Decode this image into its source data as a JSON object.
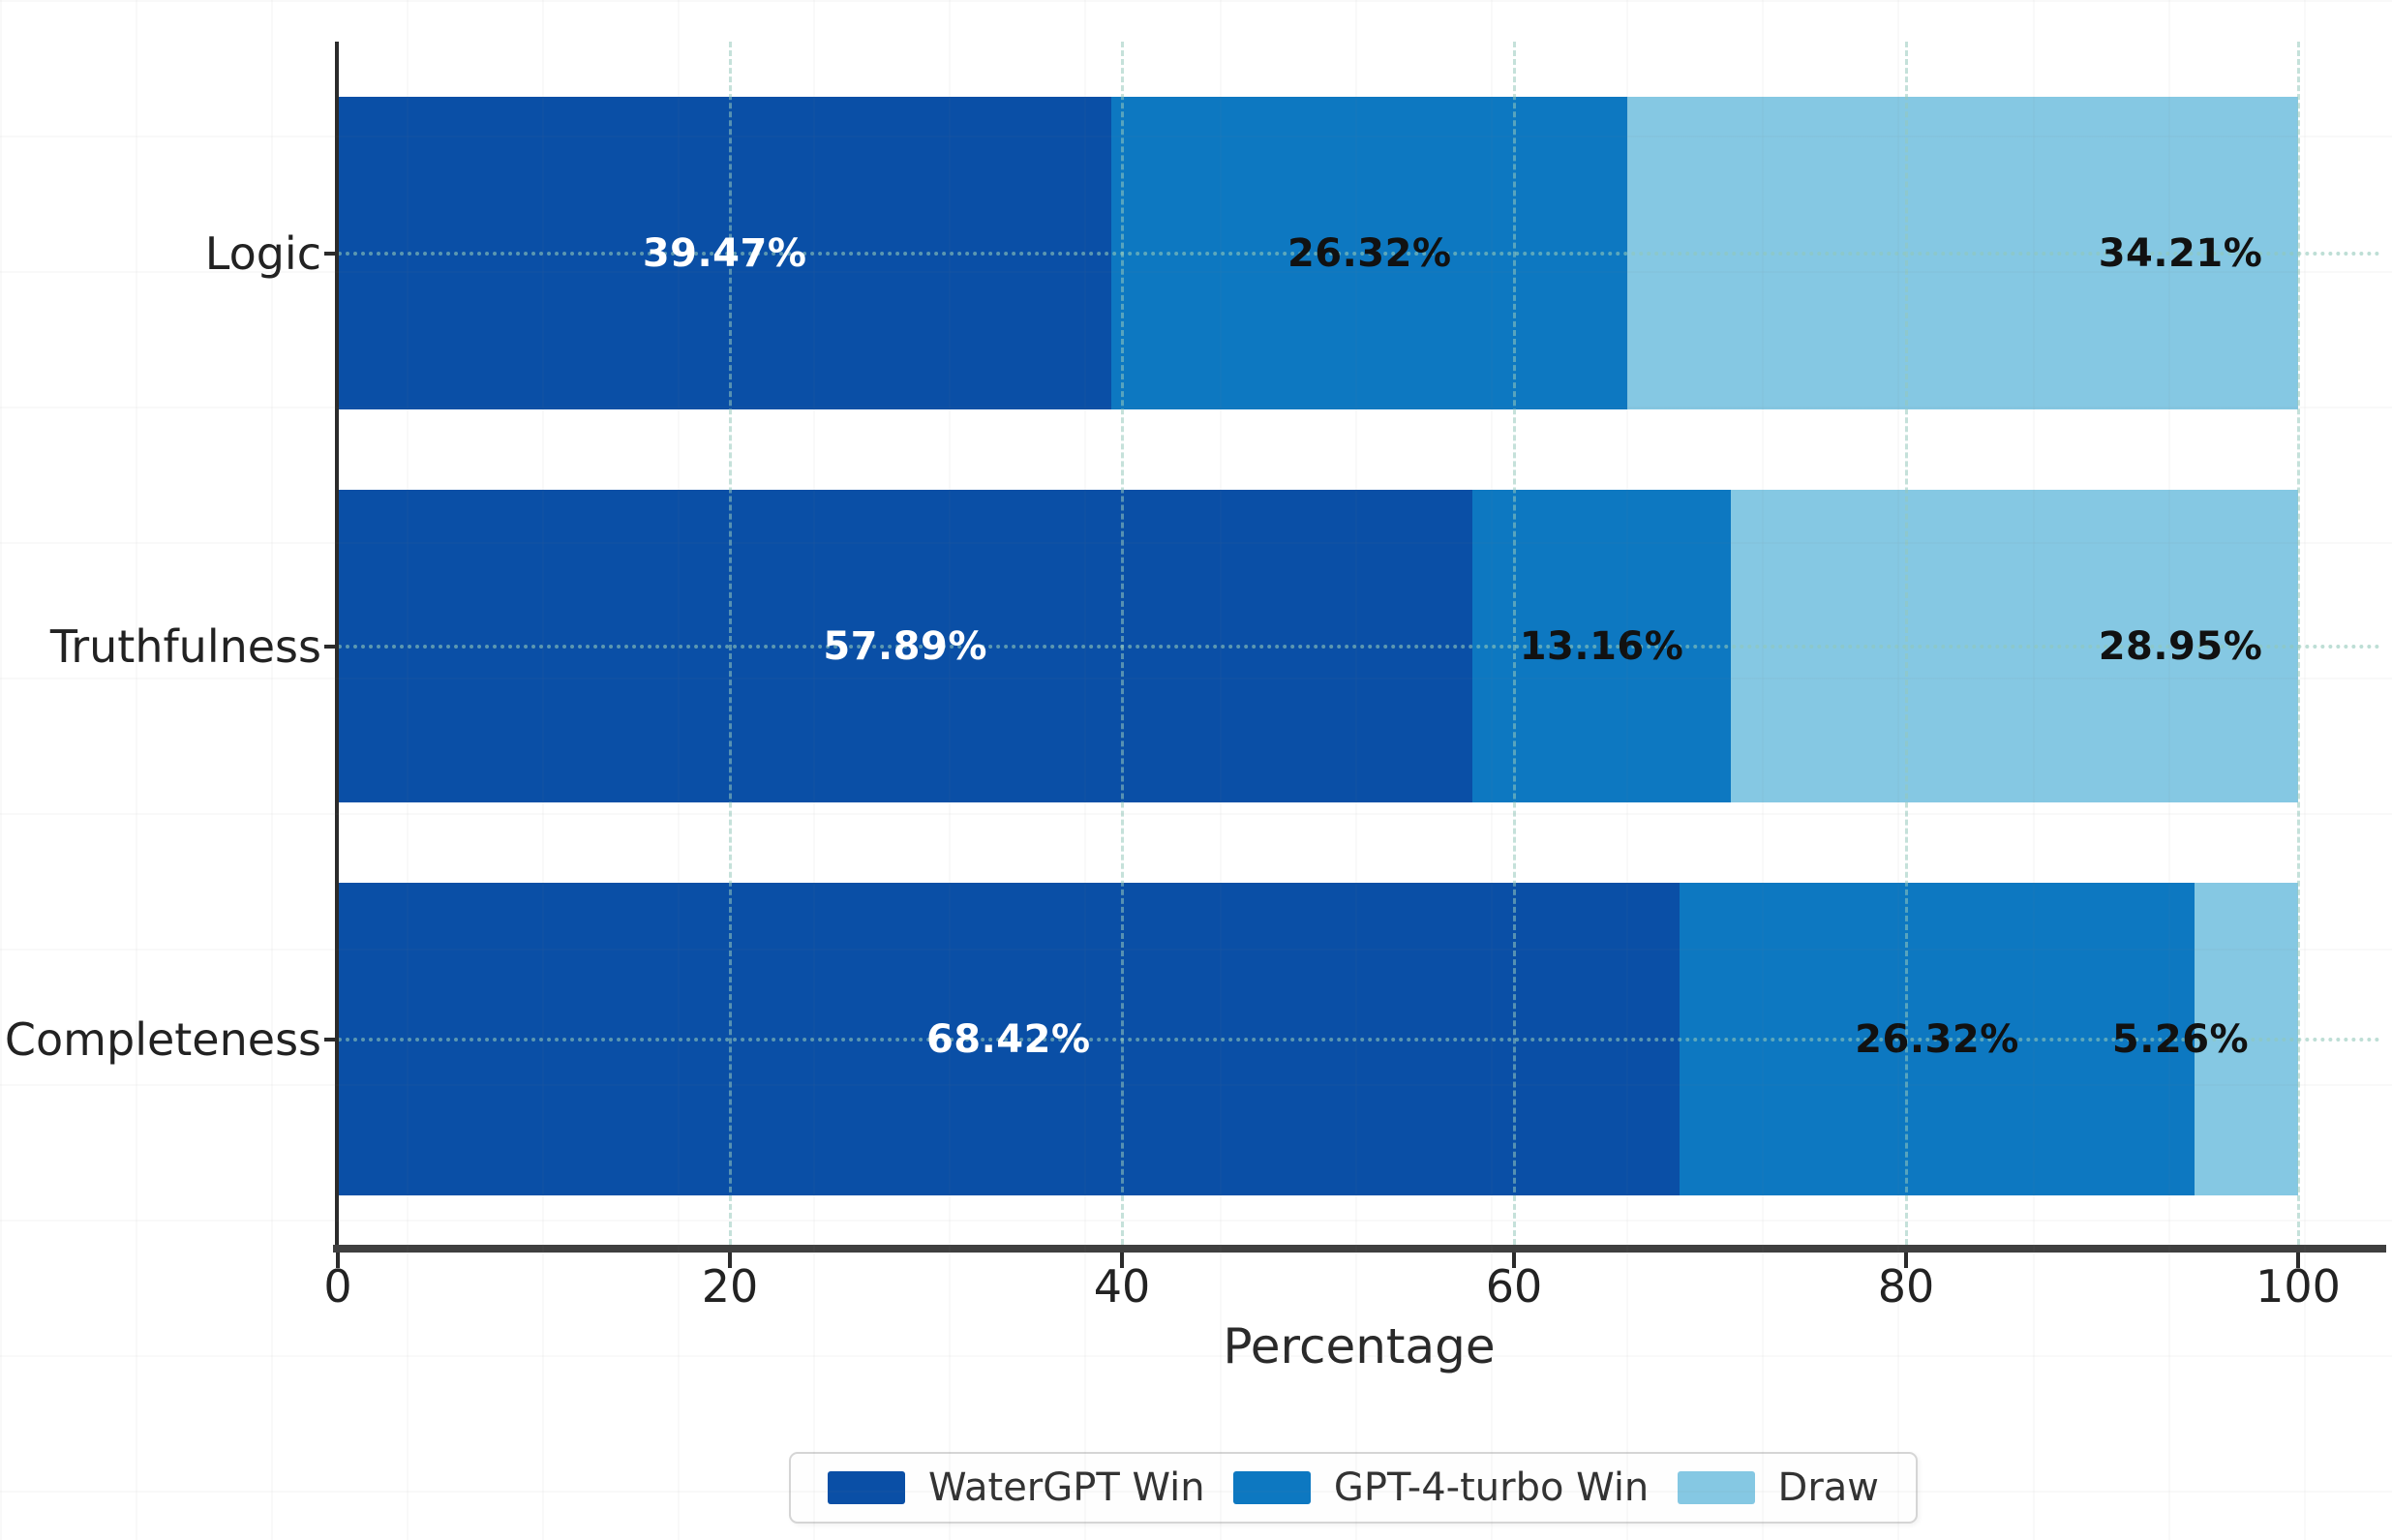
{
  "chart_data": {
    "type": "bar",
    "orientation": "horizontal",
    "stacked": true,
    "title": "",
    "xlabel": "Percentage",
    "ylabel": "",
    "categories": [
      "Logic",
      "Truthfulness",
      "Completeness"
    ],
    "series": [
      {
        "name": "WaterGPT Win",
        "color": "#0a4fa6",
        "label_color": "#ffffff",
        "values": [
          39.47,
          57.89,
          68.42
        ]
      },
      {
        "name": "GPT-4-turbo Win",
        "color": "#0d78c1",
        "label_color": "#111111",
        "values": [
          26.32,
          13.16,
          26.32
        ]
      },
      {
        "name": "Draw",
        "color": "#85c8e3",
        "label_color": "#111111",
        "values": [
          34.21,
          28.95,
          5.26
        ],
        "label_anchor_x": 94
      }
    ],
    "row_totals": [
      100,
      100,
      100
    ],
    "value_suffix": "%",
    "value_decimals": 2,
    "xticks": [
      0,
      20,
      40,
      60,
      80,
      100
    ],
    "xlim": [
      0,
      104.3
    ],
    "grid": true,
    "gridline_style": "dashed",
    "legend_position": "bottom center",
    "colors": {
      "watergpt_win": "#0a4fa6",
      "gpt4turbo_win": "#0d78c1",
      "draw": "#85c8e3",
      "axis_spine": "#3f3f3f",
      "tick_text": "#222222"
    }
  }
}
